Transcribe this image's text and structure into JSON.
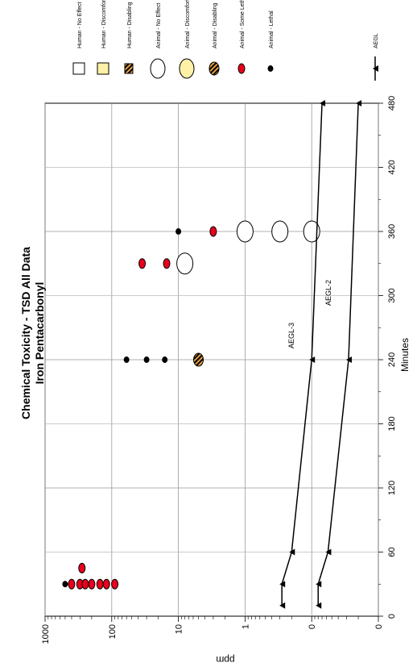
{
  "chart_data": {
    "type": "scatter",
    "orientation": "rotated-90-clockwise",
    "title": "Chemical Toxicity - TSD All Data",
    "subtitle": "Iron Pentacarbonyl",
    "xlabel": "Minutes",
    "ylabel": "ppm",
    "x_range": [
      0,
      480
    ],
    "x_ticks": [
      "0",
      "60",
      "120",
      "180",
      "240",
      "300",
      "360",
      "420",
      "480"
    ],
    "y_scale": "log",
    "y_range": [
      0.01,
      1000
    ],
    "y_ticks": [
      {
        "value": 0.01,
        "label": "0"
      },
      {
        "value": 0.1,
        "label": "0"
      },
      {
        "value": 1,
        "label": "1"
      },
      {
        "value": 10,
        "label": "10"
      },
      {
        "value": 100,
        "label": "100"
      },
      {
        "value": 1000,
        "label": "1000"
      }
    ],
    "grid": true,
    "legend_position": "right",
    "legend": [
      {
        "name": "Human - No Effect",
        "marker": "square",
        "color": "#ffffff"
      },
      {
        "name": "Human - Discomfort",
        "marker": "square",
        "color": "#fff2a8"
      },
      {
        "name": "Human - Disabling",
        "marker": "square-striped",
        "color": "#e8a040"
      },
      {
        "name": "Animal - No Effect",
        "marker": "circle",
        "color": "#ffffff"
      },
      {
        "name": "Animal - Discomfort",
        "marker": "circle",
        "color": "#fff2a8"
      },
      {
        "name": "Animal - Disabling",
        "marker": "circle-striped",
        "color": "#e8a040"
      },
      {
        "name": "Animal - Some Lethality",
        "marker": "ellipse",
        "color": "#e8001c"
      },
      {
        "name": "Animal - Lethal",
        "marker": "dot",
        "color": "#000000"
      },
      {
        "name": "AEGL",
        "marker": "line-triangle",
        "color": "#000000"
      }
    ],
    "series": [
      {
        "name": "Animal - No Effect",
        "marker": "circle",
        "color": "#ffffff",
        "points": [
          {
            "x": 330,
            "y": 8
          },
          {
            "x": 360,
            "y": 1
          },
          {
            "x": 360,
            "y": 0.3
          },
          {
            "x": 360,
            "y": 0.1
          }
        ]
      },
      {
        "name": "Animal - Disabling",
        "marker": "circle-striped",
        "color": "#e8a040",
        "points": [
          {
            "x": 240,
            "y": 5
          }
        ]
      },
      {
        "name": "Animal - Some Lethality",
        "marker": "ellipse",
        "color": "#e8001c",
        "points": [
          {
            "x": 30,
            "y": 400
          },
          {
            "x": 30,
            "y": 300
          },
          {
            "x": 30,
            "y": 250
          },
          {
            "x": 30,
            "y": 200
          },
          {
            "x": 30,
            "y": 150
          },
          {
            "x": 30,
            "y": 120
          },
          {
            "x": 30,
            "y": 90
          },
          {
            "x": 45,
            "y": 280
          },
          {
            "x": 330,
            "y": 35
          },
          {
            "x": 330,
            "y": 15
          },
          {
            "x": 360,
            "y": 3
          }
        ]
      },
      {
        "name": "Animal - Lethal",
        "marker": "dot",
        "color": "#000000",
        "points": [
          {
            "x": 30,
            "y": 500
          },
          {
            "x": 240,
            "y": 60
          },
          {
            "x": 240,
            "y": 30
          },
          {
            "x": 240,
            "y": 16
          },
          {
            "x": 360,
            "y": 10
          }
        ]
      },
      {
        "name": "AEGL-3",
        "marker": "line-triangle",
        "color": "#000000",
        "points": [
          {
            "x": 10,
            "y": 0.28
          },
          {
            "x": 30,
            "y": 0.28
          },
          {
            "x": 60,
            "y": 0.2
          },
          {
            "x": 240,
            "y": 0.1
          },
          {
            "x": 480,
            "y": 0.07
          }
        ]
      },
      {
        "name": "AEGL-2",
        "marker": "line-triangle",
        "color": "#000000",
        "points": [
          {
            "x": 10,
            "y": 0.08
          },
          {
            "x": 30,
            "y": 0.08
          },
          {
            "x": 60,
            "y": 0.057
          },
          {
            "x": 240,
            "y": 0.028
          },
          {
            "x": 480,
            "y": 0.02
          }
        ]
      }
    ],
    "annotations": [
      {
        "text": "AEGL-3",
        "x": 240,
        "y": 0.1
      },
      {
        "text": "AEGL-2",
        "x": 280,
        "y": 0.028
      }
    ]
  }
}
